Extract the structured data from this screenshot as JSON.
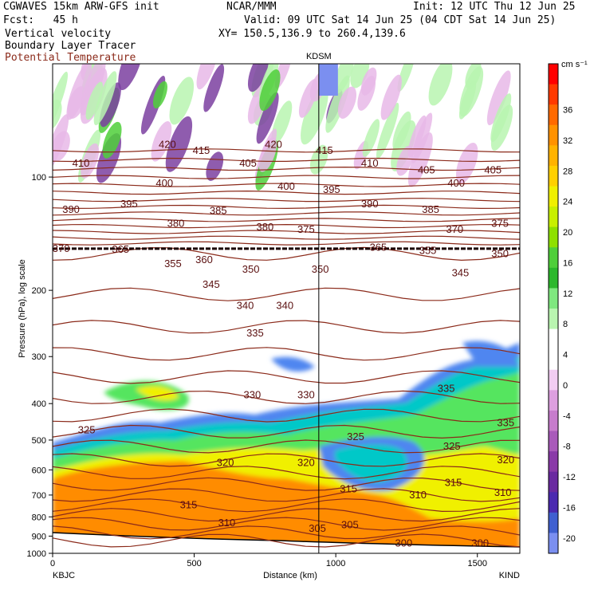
{
  "header": {
    "model": "CGWAVES 15km ARW-GFS init",
    "org": "NCAR/MMM",
    "init": "Init: 12 UTC Thu 12 Jun 25",
    "fcst": "Fcst:   45 h",
    "valid": "Valid: 09 UTC Sat 14 Jun 25 (04 CDT Sat 14 Jun 25)",
    "field1": "Vertical velocity",
    "field2": "Boundary Layer Tracer",
    "field3": "Potential Temperature",
    "xy": "XY= 150.5,136.9 to 260.4,139.6"
  },
  "colors": {
    "theta": "#8b2a1a",
    "down_strong": "#7b3fa0",
    "down_weak": "#e7b8e8",
    "tracer": [
      "#4f86f0",
      "#00c8c8",
      "#55e55e",
      "#f0f000",
      "#ff8c00"
    ]
  },
  "chart_data": {
    "type": "heatmap",
    "title": "KDSM",
    "xlabel": "Distance (km)",
    "ylabel": "Pressure (hPa), log scale",
    "xlim": [
      0,
      1650
    ],
    "ylim": [
      1000,
      50
    ],
    "x_scale": "linear",
    "y_scale": "log",
    "x_ticks": [
      0,
      500,
      1000,
      1500
    ],
    "y_ticks": [
      100,
      200,
      300,
      400,
      500,
      600,
      700,
      800,
      900,
      1000
    ],
    "endpoints": {
      "left": "KBJC",
      "right": "KIND"
    },
    "marker_x": 940,
    "colorbar": {
      "units": "cm s⁻¹",
      "ticks": [
        36,
        32,
        28,
        24,
        20,
        16,
        12,
        8,
        4,
        0,
        -4,
        -8,
        -12,
        -16,
        -20
      ],
      "colors": [
        "#ff0000",
        "#ff3a00",
        "#ff6a00",
        "#ff9200",
        "#ffb300",
        "#ffd000",
        "#f0f000",
        "#c8f000",
        "#8ee000",
        "#4fcf3a",
        "#2cb82c",
        "#7fe87f",
        "#b9f5b0",
        "#ffffff",
        "#ffffff",
        "#f2cdf2",
        "#dd9fdf",
        "#c77ccc",
        "#a95aba",
        "#8a3aa8",
        "#6a2aa0",
        "#4b2ab0",
        "#4060d0",
        "#7b8ff0"
      ]
    },
    "tropopause_hpa": 155,
    "theta_labels": [
      {
        "text": "420",
        "x": 405,
        "p": 82
      },
      {
        "text": "415",
        "x": 525,
        "p": 85
      },
      {
        "text": "420",
        "x": 780,
        "p": 82
      },
      {
        "text": "415",
        "x": 960,
        "p": 85
      },
      {
        "text": "410",
        "x": 100,
        "p": 92
      },
      {
        "text": "405",
        "x": 690,
        "p": 92
      },
      {
        "text": "410",
        "x": 1120,
        "p": 92
      },
      {
        "text": "405",
        "x": 1320,
        "p": 96
      },
      {
        "text": "405",
        "x": 1555,
        "p": 96
      },
      {
        "text": "400",
        "x": 395,
        "p": 104
      },
      {
        "text": "400",
        "x": 825,
        "p": 106
      },
      {
        "text": "395",
        "x": 985,
        "p": 108
      },
      {
        "text": "400",
        "x": 1425,
        "p": 104
      },
      {
        "text": "390",
        "x": 65,
        "p": 122
      },
      {
        "text": "395",
        "x": 270,
        "p": 118
      },
      {
        "text": "390",
        "x": 1120,
        "p": 118
      },
      {
        "text": "385",
        "x": 1335,
        "p": 122
      },
      {
        "text": "380",
        "x": 435,
        "p": 133
      },
      {
        "text": "385",
        "x": 585,
        "p": 123
      },
      {
        "text": "380",
        "x": 750,
        "p": 136
      },
      {
        "text": "375",
        "x": 895,
        "p": 138
      },
      {
        "text": "370",
        "x": 1420,
        "p": 138
      },
      {
        "text": "375",
        "x": 1580,
        "p": 133
      },
      {
        "text": "370",
        "x": 30,
        "p": 155
      },
      {
        "text": "365",
        "x": 240,
        "p": 156
      },
      {
        "text": "365",
        "x": 1150,
        "p": 154
      },
      {
        "text": "355",
        "x": 1325,
        "p": 157
      },
      {
        "text": "350",
        "x": 1580,
        "p": 160
      },
      {
        "text": "355",
        "x": 425,
        "p": 170
      },
      {
        "text": "360",
        "x": 535,
        "p": 166
      },
      {
        "text": "350",
        "x": 700,
        "p": 176
      },
      {
        "text": "350",
        "x": 945,
        "p": 176
      },
      {
        "text": "345",
        "x": 1440,
        "p": 180
      },
      {
        "text": "345",
        "x": 560,
        "p": 193
      },
      {
        "text": "340",
        "x": 680,
        "p": 220
      },
      {
        "text": "340",
        "x": 820,
        "p": 220
      },
      {
        "text": "335",
        "x": 715,
        "p": 260
      },
      {
        "text": "335",
        "x": 1390,
        "p": 365
      },
      {
        "text": "330",
        "x": 705,
        "p": 380
      },
      {
        "text": "330",
        "x": 895,
        "p": 380
      },
      {
        "text": "335",
        "x": 1600,
        "p": 450
      },
      {
        "text": "325",
        "x": 120,
        "p": 470
      },
      {
        "text": "325",
        "x": 1070,
        "p": 490
      },
      {
        "text": "325",
        "x": 1410,
        "p": 520
      },
      {
        "text": "320",
        "x": 610,
        "p": 575
      },
      {
        "text": "320",
        "x": 895,
        "p": 575
      },
      {
        "text": "320",
        "x": 1600,
        "p": 565
      },
      {
        "text": "315",
        "x": 1045,
        "p": 675
      },
      {
        "text": "315",
        "x": 1415,
        "p": 650
      },
      {
        "text": "310",
        "x": 1290,
        "p": 700
      },
      {
        "text": "310",
        "x": 1590,
        "p": 690
      },
      {
        "text": "315",
        "x": 480,
        "p": 745
      },
      {
        "text": "310",
        "x": 615,
        "p": 830
      },
      {
        "text": "305",
        "x": 935,
        "p": 860
      },
      {
        "text": "305",
        "x": 1050,
        "p": 840
      },
      {
        "text": "300",
        "x": 1240,
        "p": 940
      },
      {
        "text": "300",
        "x": 1510,
        "p": 940
      }
    ]
  }
}
